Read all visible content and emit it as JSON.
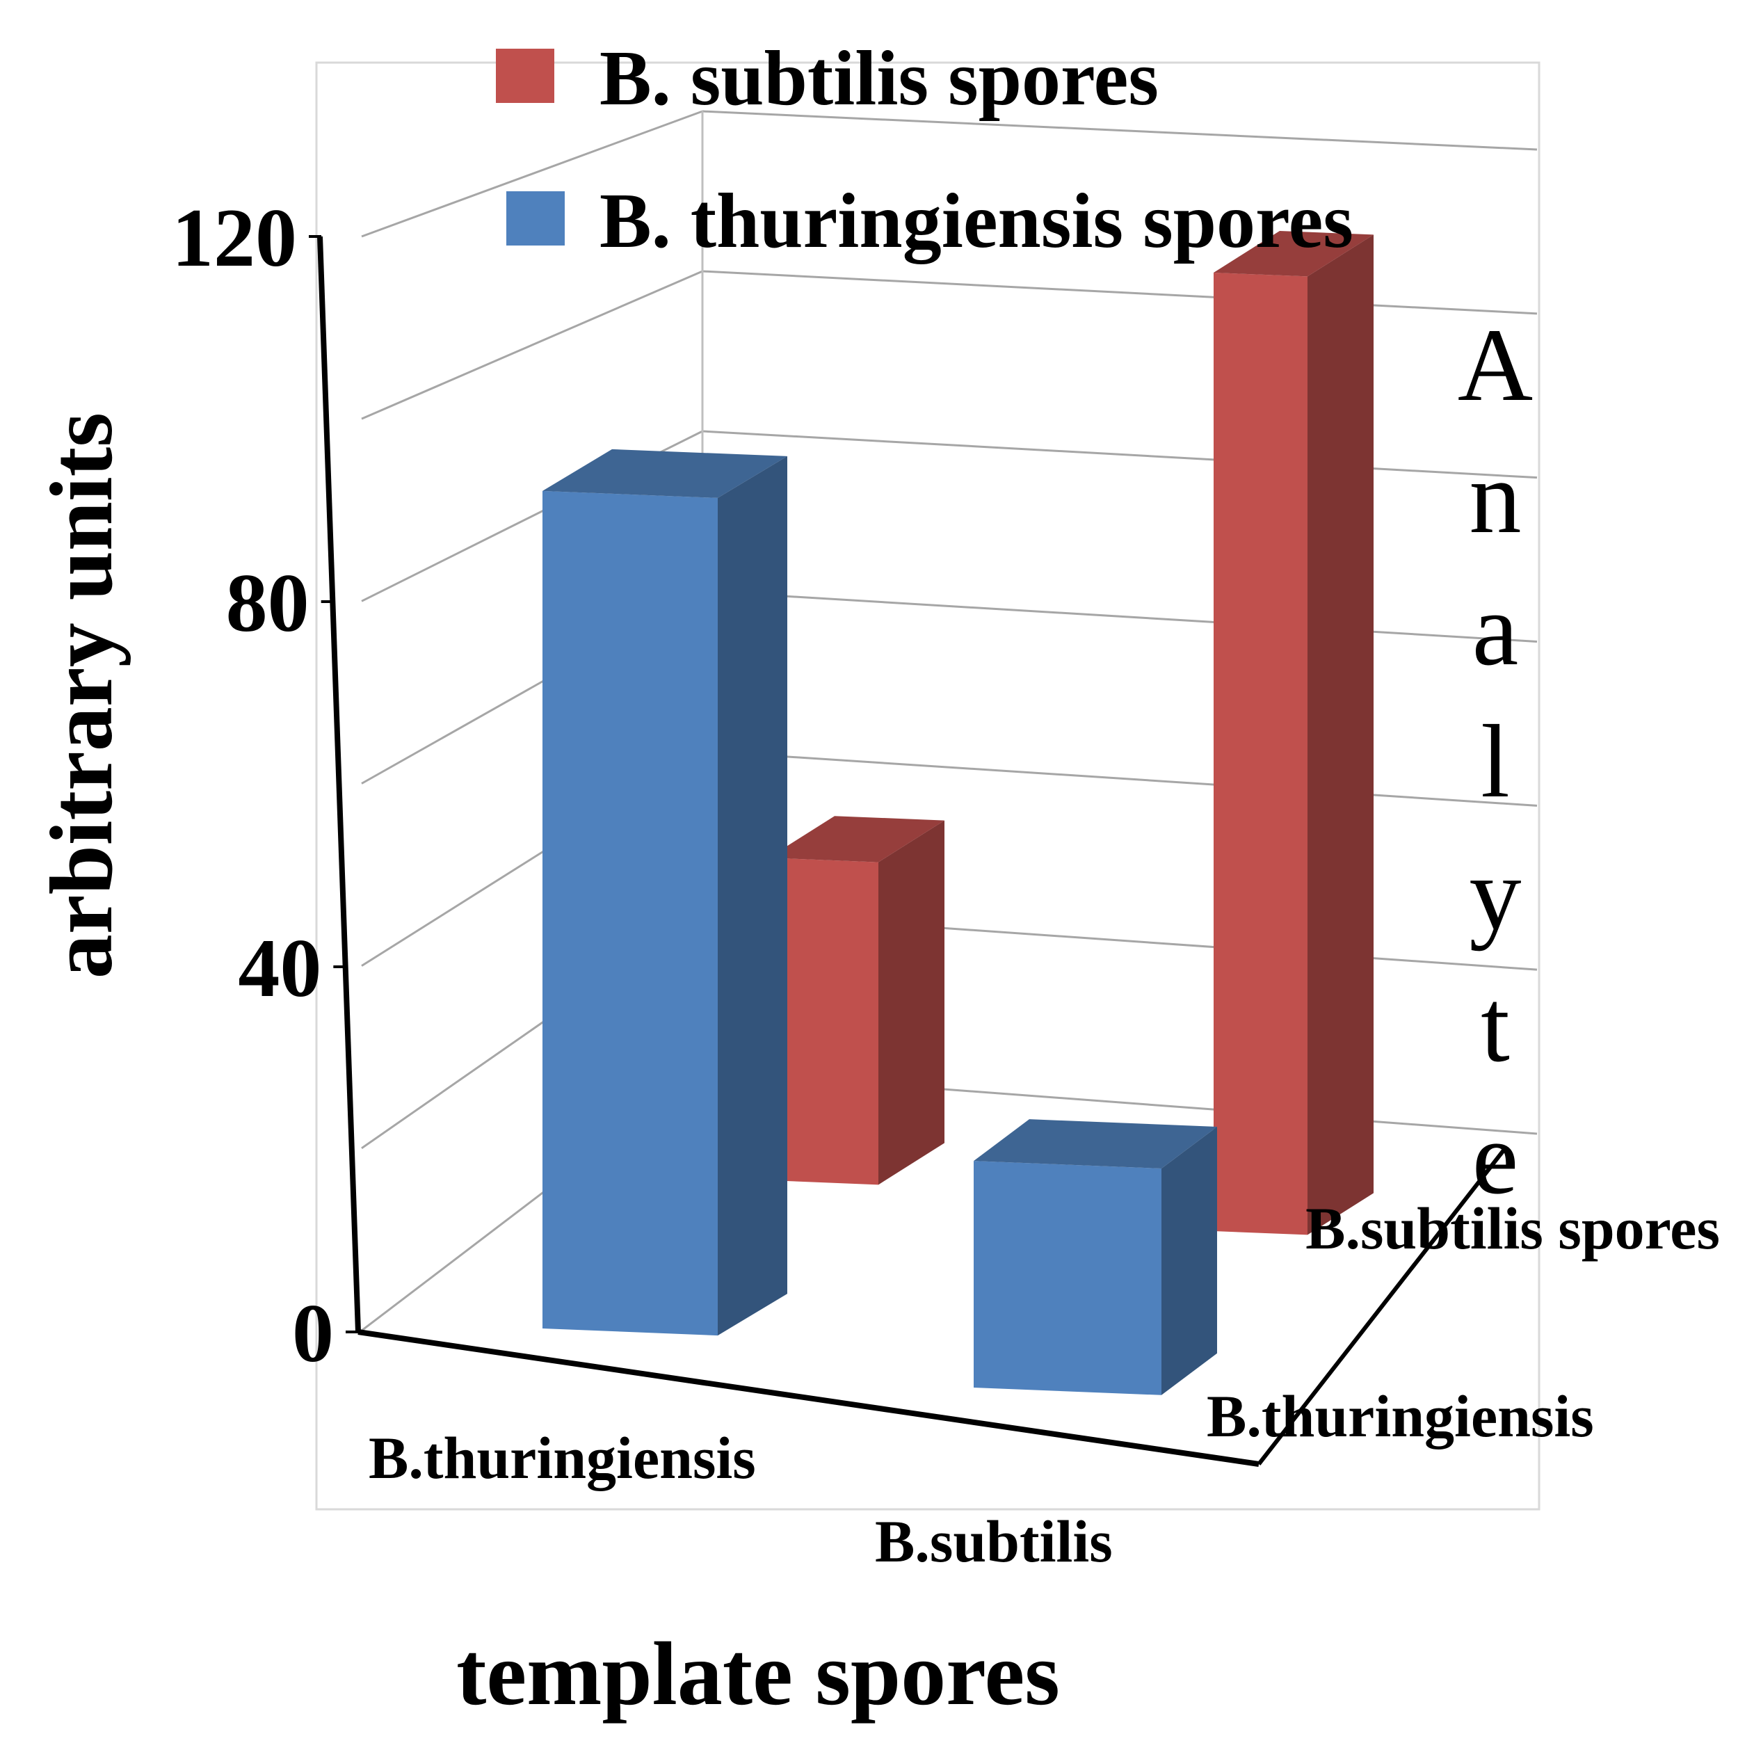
{
  "chart_data": {
    "type": "bar",
    "subtype": "3d-clustered-column",
    "title": "",
    "xlabel": "template spores",
    "ylabel": "arbitrary units",
    "zlabel": "Analyte",
    "ylim": [
      0,
      120
    ],
    "yticks": [
      0,
      40,
      80,
      120
    ],
    "categories": [
      "B.thuringiensis",
      "B.subtilis"
    ],
    "depth_labels": [
      "B.thuringiensis",
      "B.subtilis spores"
    ],
    "legend_position": "top",
    "grid": true,
    "series": [
      {
        "name": "B. subtilis spores",
        "color": "#c0504d",
        "values": [
          35,
          104
        ]
      },
      {
        "name": "B. thuringiensis spores",
        "color": "#4f81bd",
        "values": [
          85,
          23
        ]
      }
    ]
  }
}
